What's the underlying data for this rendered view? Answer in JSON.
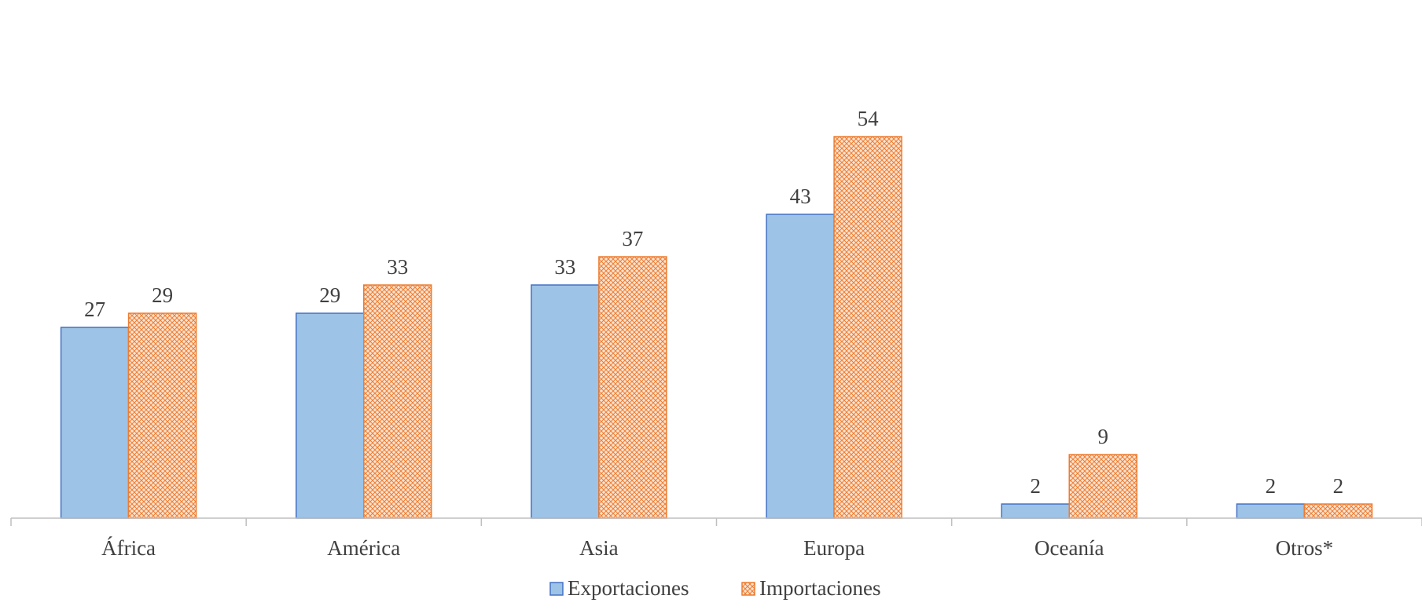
{
  "chart_data": {
    "type": "bar",
    "title": "",
    "xlabel": "",
    "ylabel": "",
    "categories": [
      "África",
      "América",
      "Asia",
      "Europa",
      "Oceanía",
      "Otros*"
    ],
    "series": [
      {
        "name": "Exportaciones",
        "values": [
          27,
          29,
          33,
          43,
          2,
          2
        ],
        "color": "#9DC3E6",
        "stroke": "#4472C4"
      },
      {
        "name": "Importaciones",
        "values": [
          29,
          33,
          37,
          54,
          9,
          2
        ],
        "color": "#F4B183",
        "stroke": "#ED7D31",
        "pattern": "crosshatch"
      }
    ],
    "ylim": [
      0,
      55
    ],
    "grid": false,
    "data_labels": true,
    "legend_position": "bottom"
  }
}
